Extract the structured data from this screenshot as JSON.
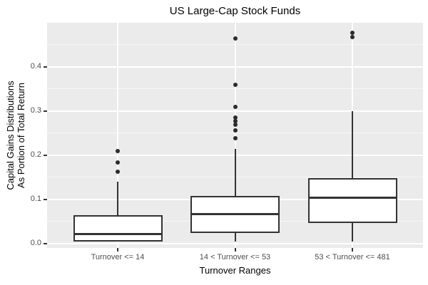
{
  "chart_data": {
    "type": "boxplot",
    "title": "US Large-Cap Stock Funds",
    "xlabel": "Turnover Ranges",
    "ylabel": "Capital Gains Distributions As Portion of Total Return",
    "ylabel_lines": [
      "Capital Gains Distributions",
      "As Portion of Total Return"
    ],
    "categories": [
      "Turnover <= 14",
      "14 < Turnover <= 53",
      "53 < Turnover <= 481"
    ],
    "y_ticks": [
      {
        "value": 0.0,
        "label": "0.0"
      },
      {
        "value": 0.1,
        "label": "0.1"
      },
      {
        "value": 0.2,
        "label": "0.2"
      },
      {
        "value": 0.3,
        "label": "0.3"
      },
      {
        "value": 0.4,
        "label": "0.4"
      }
    ],
    "y_minor_ticks": [
      0.05,
      0.15,
      0.25,
      0.35,
      0.45
    ],
    "ylim": [
      -0.01,
      0.5
    ],
    "grid": "on",
    "legend": "none",
    "series": [
      {
        "category": "Turnover <= 14",
        "min": 0.005,
        "q1": 0.005,
        "median": 0.021,
        "q3": 0.065,
        "max": 0.14,
        "outliers": [
          0.163,
          0.184,
          0.21
        ]
      },
      {
        "category": "14 < Turnover <= 53",
        "min": 0.004,
        "q1": 0.024,
        "median": 0.066,
        "q3": 0.108,
        "max": 0.215,
        "outliers": [
          0.238,
          0.256,
          0.269,
          0.277,
          0.285,
          0.309,
          0.359,
          0.464
        ]
      },
      {
        "category": "53 < Turnover <= 481",
        "min": 0.005,
        "q1": 0.046,
        "median": 0.103,
        "q3": 0.148,
        "max": 0.3,
        "outliers": [
          0.468,
          0.478
        ]
      }
    ],
    "colors": {
      "panel_bg": "#EBEBEB",
      "gridline_major": "#FFFFFF",
      "gridline_minor": "#F7F7F7",
      "box_fill": "#FFFFFF",
      "box_border": "#333333",
      "outlier": "#2B2B2B",
      "tick_label": "#4D4D4D",
      "title": "#000000"
    }
  }
}
